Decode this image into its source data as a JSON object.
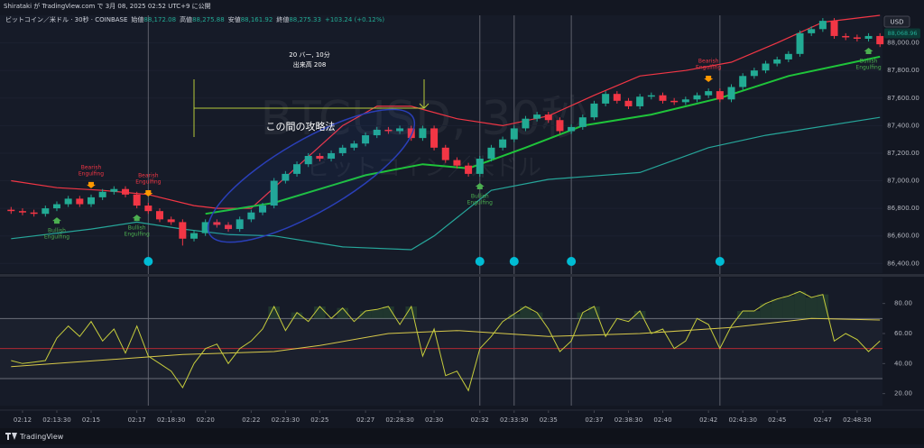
{
  "published": "Shirataki が TradingView.com で 3月 08, 2025 02:52 UTC+9 に公開",
  "symbol_line": "ビットコイン／米ドル · 30秒 · COINBASE",
  "ohlc": [
    {
      "label": "始値",
      "value": "88,172.08"
    },
    {
      "label": "高値",
      "value": "88,275.88"
    },
    {
      "label": "安値",
      "value": "88,161.92"
    },
    {
      "label": "終値",
      "value": "88,275.33"
    }
  ],
  "change": "+103.24 (+0.12%)",
  "watermark": {
    "symbol": "BTCUSD, 30秒",
    "name": "ビットコイン／米ドル"
  },
  "measure": {
    "bars": "20 バー, 10分",
    "volume": "出来高 208"
  },
  "note": "この間の攻略法",
  "footer": "TradingView",
  "chart_data": [
    {
      "type": "candlestick",
      "currency": "USD",
      "up_color": "#22ab94",
      "down_color": "#f23645",
      "last_price": {
        "value": 88068.96,
        "label": "88,068.96"
      },
      "open": [
        86790,
        86780,
        86770,
        86760,
        86800,
        86830,
        86870,
        86830,
        86880,
        86920,
        86940,
        86900,
        86820,
        86780,
        86720,
        86700,
        86580,
        86620,
        86700,
        86680,
        86650,
        86720,
        86770,
        86820,
        87000,
        87050,
        87120,
        87180,
        87160,
        87200,
        87240,
        87270,
        87330,
        87370,
        87360,
        87380,
        87310,
        87380,
        87240,
        87150,
        87110,
        87050,
        87160,
        87240,
        87300,
        87380,
        87450,
        87480,
        87440,
        87360,
        87390,
        87460,
        87560,
        87630,
        87580,
        87540,
        87610,
        87620,
        87580,
        87570,
        87590,
        87620,
        87650,
        87590,
        87680,
        87760,
        87800,
        87850,
        87880,
        87920,
        88070,
        88100,
        88160,
        88050,
        88040,
        88030,
        88050
      ],
      "high": [
        86810,
        86800,
        86790,
        86820,
        86850,
        86890,
        86890,
        86900,
        86940,
        86960,
        86960,
        86920,
        86840,
        86800,
        86740,
        86720,
        86640,
        86720,
        86720,
        86700,
        86740,
        86790,
        86840,
        87020,
        87070,
        87140,
        87200,
        87200,
        87220,
        87260,
        87290,
        87350,
        87390,
        87390,
        87400,
        87400,
        87400,
        87400,
        87260,
        87170,
        87130,
        87180,
        87260,
        87320,
        87400,
        87470,
        87500,
        87500,
        87460,
        87410,
        87480,
        87580,
        87650,
        87650,
        87600,
        87630,
        87640,
        87640,
        87600,
        87610,
        87640,
        87670,
        87670,
        87700,
        87780,
        87820,
        87870,
        87900,
        87940,
        88090,
        88120,
        88180,
        88180,
        88070,
        88060,
        88070,
        88070
      ],
      "low": [
        86760,
        86750,
        86740,
        86740,
        86780,
        86810,
        86810,
        86810,
        86860,
        86900,
        86880,
        86800,
        86760,
        86700,
        86680,
        86530,
        86560,
        86600,
        86660,
        86630,
        86630,
        86700,
        86750,
        86800,
        86980,
        87030,
        87100,
        87140,
        87140,
        87180,
        87220,
        87250,
        87310,
        87340,
        87340,
        87290,
        87290,
        87220,
        87130,
        87090,
        87030,
        87030,
        87140,
        87220,
        87280,
        87360,
        87430,
        87420,
        87340,
        87340,
        87370,
        87440,
        87540,
        87560,
        87520,
        87520,
        87590,
        87560,
        87550,
        87550,
        87570,
        87600,
        87570,
        87570,
        87660,
        87740,
        87780,
        87830,
        87860,
        87900,
        88050,
        88080,
        88030,
        88020,
        88010,
        88010,
        87970
      ],
      "close": [
        86780,
        86770,
        86760,
        86800,
        86830,
        86870,
        86830,
        86880,
        86920,
        86940,
        86900,
        86820,
        86780,
        86720,
        86700,
        86580,
        86620,
        86700,
        86680,
        86650,
        86720,
        86770,
        86820,
        87000,
        87050,
        87120,
        87180,
        87160,
        87200,
        87240,
        87270,
        87330,
        87370,
        87360,
        87380,
        87310,
        87380,
        87240,
        87150,
        87110,
        87050,
        87160,
        87240,
        87300,
        87380,
        87450,
        87480,
        87440,
        87360,
        87390,
        87460,
        87560,
        87630,
        87580,
        87540,
        87610,
        87620,
        87580,
        87570,
        87590,
        87620,
        87650,
        87590,
        87680,
        87760,
        87800,
        87850,
        87880,
        87920,
        88070,
        88100,
        88160,
        88050,
        88040,
        88030,
        88050,
        87990
      ],
      "ylim": [
        86330,
        88200
      ],
      "yticks": [
        {
          "value": 86400,
          "label": "86,400.00"
        },
        {
          "value": 86600,
          "label": "86,600.00"
        },
        {
          "value": 86800,
          "label": "86,800.00"
        },
        {
          "value": 87000,
          "label": "87,000.00"
        },
        {
          "value": 87200,
          "label": "87,200.00"
        },
        {
          "value": 87400,
          "label": "87,400.00"
        },
        {
          "value": 87600,
          "label": "87,600.00"
        },
        {
          "value": 87800,
          "label": "87,800.00"
        },
        {
          "value": 88000,
          "label": "88,000.00"
        }
      ],
      "xticks": [
        {
          "value": 1,
          "label": "02:12"
        },
        {
          "value": 4,
          "label": "02:13:30"
        },
        {
          "value": 7,
          "label": "02:15"
        },
        {
          "value": 11,
          "label": "02:17"
        },
        {
          "value": 14,
          "label": "02:18:30"
        },
        {
          "value": 17,
          "label": "02:20"
        },
        {
          "value": 21,
          "label": "02:22"
        },
        {
          "value": 24,
          "label": "02:23:30"
        },
        {
          "value": 27,
          "label": "02:25"
        },
        {
          "value": 31,
          "label": "02:27"
        },
        {
          "value": 34,
          "label": "02:28:30"
        },
        {
          "value": 37,
          "label": "02:30"
        },
        {
          "value": 41,
          "label": "02:32"
        },
        {
          "value": 44,
          "label": "02:33:30"
        },
        {
          "value": 47,
          "label": "02:35"
        },
        {
          "value": 51,
          "label": "02:37"
        },
        {
          "value": 54,
          "label": "02:38:30"
        },
        {
          "value": 57,
          "label": "02:40"
        },
        {
          "value": 61,
          "label": "02:42"
        },
        {
          "value": 64,
          "label": "02:43:30"
        },
        {
          "value": 67,
          "label": "02:45"
        },
        {
          "value": 71,
          "label": "02:47"
        },
        {
          "value": 74,
          "label": "02:48:30"
        }
      ],
      "upper_band": {
        "color": "#f23645",
        "x": [
          0,
          4,
          8,
          12,
          16,
          18,
          21,
          25,
          29,
          32,
          35,
          39,
          43,
          47,
          51,
          55,
          59,
          63,
          67,
          71,
          76
        ],
        "values": [
          87000,
          86950,
          86930,
          86900,
          86820,
          86800,
          86800,
          87100,
          87400,
          87540,
          87540,
          87450,
          87400,
          87470,
          87620,
          87760,
          87800,
          87860,
          88000,
          88150,
          88200
        ]
      },
      "middle_band": {
        "color": "#1fc43a",
        "x": [
          17,
          23,
          31,
          36,
          40,
          45,
          50,
          56,
          62,
          68,
          76
        ],
        "values": [
          86760,
          86840,
          87040,
          87120,
          87090,
          87240,
          87400,
          87480,
          87600,
          87760,
          87900
        ]
      },
      "lower_band": {
        "color": "#26a69a",
        "x": [
          0,
          7,
          11,
          15,
          19,
          23,
          29,
          35,
          37,
          42,
          47,
          55,
          61,
          66,
          76
        ],
        "values": [
          86580,
          86650,
          86700,
          86650,
          86610,
          86600,
          86520,
          86500,
          86600,
          86930,
          87010,
          87060,
          87240,
          87330,
          87460
        ]
      },
      "signals": [
        {
          "x": 7,
          "type": "bearish",
          "label": [
            "Bearish",
            "Engulfing"
          ]
        },
        {
          "x": 12,
          "type": "bearish",
          "label": [
            "Bearish",
            "Engulfing"
          ]
        },
        {
          "x": 4,
          "type": "bullish",
          "label": [
            "Bullish",
            "Engulfing"
          ]
        },
        {
          "x": 11,
          "type": "bullish",
          "label": [
            "Bullish",
            "Engulfing"
          ]
        },
        {
          "x": 41,
          "type": "bullish",
          "label": [
            "Bullish",
            "Engulfing"
          ]
        },
        {
          "x": 61,
          "type": "bearish",
          "label": [
            "Bearish",
            "Engulfing"
          ]
        },
        {
          "x": 75,
          "type": "bullish",
          "label": [
            "Bullish",
            "Engulfing"
          ]
        }
      ],
      "markers": [
        12,
        41,
        44,
        49,
        62
      ]
    },
    {
      "type": "line",
      "color": "#c6cc3c",
      "values": [
        42,
        40,
        41,
        42,
        57,
        65,
        58,
        68,
        55,
        63,
        47,
        65,
        45,
        40,
        35,
        24,
        40,
        50,
        53,
        40,
        50,
        55,
        63,
        78,
        62,
        74,
        68,
        78,
        70,
        77,
        68,
        75,
        76,
        78,
        66,
        78,
        45,
        63,
        32,
        35,
        22,
        50,
        58,
        68,
        73,
        78,
        74,
        63,
        48,
        55,
        74,
        78,
        58,
        70,
        68,
        75,
        60,
        63,
        50,
        55,
        70,
        66,
        50,
        65,
        75,
        75,
        80,
        83,
        85,
        88,
        84,
        86,
        55,
        60,
        56,
        48,
        55
      ],
      "ma": {
        "color": "#d8c94a",
        "x": [
          0,
          15,
          23,
          27,
          33,
          39,
          47,
          55,
          63,
          70,
          76
        ],
        "values": [
          38,
          46,
          48,
          52,
          60,
          62,
          58,
          60,
          64,
          70,
          69
        ]
      },
      "levels": [
        70,
        50,
        30
      ],
      "ylim": [
        12,
        96
      ],
      "yticks": [
        {
          "value": 20,
          "label": "20.00"
        },
        {
          "value": 40,
          "label": "40.00"
        },
        {
          "value": 60,
          "label": "60.00"
        },
        {
          "value": 80,
          "label": "80.00"
        }
      ]
    }
  ]
}
